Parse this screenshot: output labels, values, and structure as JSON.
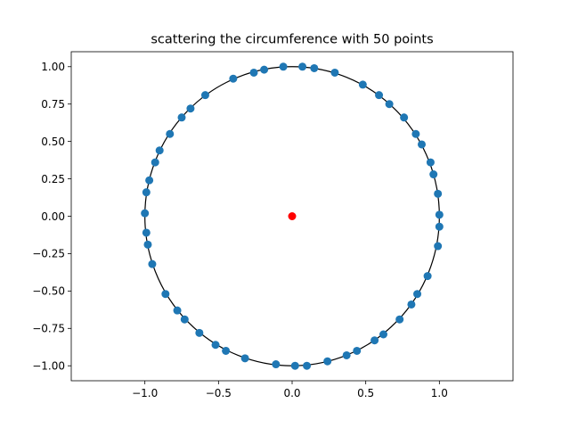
{
  "chart_data": {
    "type": "scatter",
    "title": "scattering the circumference with 50 points",
    "xlabel": "",
    "ylabel": "",
    "xlim": [
      -1.5,
      1.5
    ],
    "ylim": [
      -1.1,
      1.1
    ],
    "grid": false,
    "legend": "none",
    "x_ticks": [
      {
        "value": -1.0,
        "label": "−1.0"
      },
      {
        "value": -0.5,
        "label": "−0.5"
      },
      {
        "value": 0.0,
        "label": "0.0"
      },
      {
        "value": 0.5,
        "label": "0.5"
      },
      {
        "value": 1.0,
        "label": "1.0"
      }
    ],
    "y_ticks": [
      {
        "value": 1.0,
        "label": "1.00"
      },
      {
        "value": 0.75,
        "label": "0.75"
      },
      {
        "value": 0.5,
        "label": "0.50"
      },
      {
        "value": 0.25,
        "label": "0.25"
      },
      {
        "value": 0.0,
        "label": "0.00"
      },
      {
        "value": -0.25,
        "label": "−0.25"
      },
      {
        "value": -0.5,
        "label": "−0.50"
      },
      {
        "value": -0.75,
        "label": "−0.75"
      },
      {
        "value": -1.0,
        "label": "−1.00"
      }
    ],
    "circle": {
      "center": [
        0,
        0
      ],
      "radius": 1,
      "color": "#000000"
    },
    "center_point": {
      "x": 0,
      "y": 0,
      "color": "#ff0000"
    },
    "point_color": "#1f77b4",
    "points": [
      {
        "x": -0.06,
        "y": 1.0
      },
      {
        "x": 0.07,
        "y": 1.0
      },
      {
        "x": 0.15,
        "y": 0.99
      },
      {
        "x": 0.29,
        "y": 0.96
      },
      {
        "x": 0.48,
        "y": 0.88
      },
      {
        "x": 0.59,
        "y": 0.81
      },
      {
        "x": 0.66,
        "y": 0.75
      },
      {
        "x": 0.76,
        "y": 0.66
      },
      {
        "x": 0.84,
        "y": 0.55
      },
      {
        "x": 0.88,
        "y": 0.48
      },
      {
        "x": 0.94,
        "y": 0.36
      },
      {
        "x": 0.96,
        "y": 0.28
      },
      {
        "x": 0.99,
        "y": 0.15
      },
      {
        "x": 1.0,
        "y": 0.01
      },
      {
        "x": 1.0,
        "y": -0.07
      },
      {
        "x": 0.99,
        "y": -0.2
      },
      {
        "x": 0.92,
        "y": -0.4
      },
      {
        "x": 0.85,
        "y": -0.52
      },
      {
        "x": 0.81,
        "y": -0.59
      },
      {
        "x": 0.73,
        "y": -0.69
      },
      {
        "x": 0.62,
        "y": -0.79
      },
      {
        "x": 0.56,
        "y": -0.83
      },
      {
        "x": 0.44,
        "y": -0.9
      },
      {
        "x": 0.37,
        "y": -0.93
      },
      {
        "x": 0.24,
        "y": -0.97
      },
      {
        "x": 0.1,
        "y": -1.0
      },
      {
        "x": 0.02,
        "y": -1.0
      },
      {
        "x": -0.11,
        "y": -0.99
      },
      {
        "x": -0.32,
        "y": -0.95
      },
      {
        "x": -0.45,
        "y": -0.9
      },
      {
        "x": -0.52,
        "y": -0.86
      },
      {
        "x": -0.63,
        "y": -0.78
      },
      {
        "x": -0.73,
        "y": -0.69
      },
      {
        "x": -0.78,
        "y": -0.63
      },
      {
        "x": -0.86,
        "y": -0.52
      },
      {
        "x": -0.95,
        "y": -0.32
      },
      {
        "x": -0.98,
        "y": -0.19
      },
      {
        "x": -0.99,
        "y": -0.11
      },
      {
        "x": -1.0,
        "y": 0.02
      },
      {
        "x": -0.99,
        "y": 0.16
      },
      {
        "x": -0.97,
        "y": 0.24
      },
      {
        "x": -0.93,
        "y": 0.36
      },
      {
        "x": -0.9,
        "y": 0.44
      },
      {
        "x": -0.83,
        "y": 0.55
      },
      {
        "x": -0.75,
        "y": 0.66
      },
      {
        "x": -0.69,
        "y": 0.72
      },
      {
        "x": -0.59,
        "y": 0.81
      },
      {
        "x": -0.4,
        "y": 0.92
      },
      {
        "x": -0.26,
        "y": 0.96
      },
      {
        "x": -0.19,
        "y": 0.98
      }
    ]
  }
}
